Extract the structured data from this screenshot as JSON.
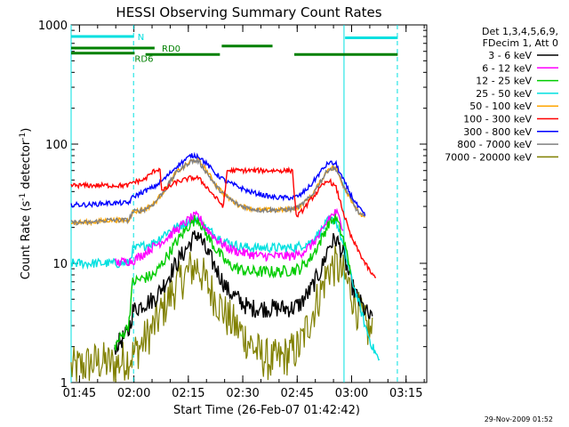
{
  "chart_data": {
    "type": "line",
    "title": "HESSI Observing Summary Count Rates",
    "xlabel": "Start Time (26-Feb-07 01:42:42)",
    "ylabel": "Count Rate (s",
    "ylabel_sup": "-1",
    "ylabel_mid": " detector",
    "ylabel_sup2": "-1",
    "ylabel_end": ")",
    "x_unit": "minutes after 01:42:42",
    "xlim": [
      0,
      98
    ],
    "ylim": [
      1,
      1000
    ],
    "yscale": "log",
    "x_ticks": [
      {
        "label": "01:45",
        "x": 2.3
      },
      {
        "label": "02:00",
        "x": 17.3
      },
      {
        "label": "02:15",
        "x": 32.3
      },
      {
        "label": "02:30",
        "x": 47.3
      },
      {
        "label": "02:45",
        "x": 62.3
      },
      {
        "label": "03:00",
        "x": 77.3
      },
      {
        "label": "03:15",
        "x": 92.3
      }
    ],
    "y_ticks": [
      {
        "label": "1",
        "y": 1
      },
      {
        "label": "10",
        "y": 10
      },
      {
        "label": "100",
        "y": 100
      },
      {
        "label": "1000",
        "y": 1000
      }
    ],
    "legend_header": [
      "Det 1,3,4,5,6,9,",
      "FDecim 1, Att 0"
    ],
    "legend_position": "right",
    "series": [
      {
        "name": "3 - 6 keV",
        "color": "#000000",
        "points": [
          [
            12,
            2
          ],
          [
            15.8,
            2.6
          ],
          [
            17,
            4
          ],
          [
            20,
            4.6
          ],
          [
            23,
            5
          ],
          [
            26,
            7
          ],
          [
            29,
            10
          ],
          [
            33,
            15
          ],
          [
            35,
            18
          ],
          [
            37,
            13
          ],
          [
            40,
            9
          ],
          [
            43,
            6
          ],
          [
            46,
            5
          ],
          [
            49,
            4.2
          ],
          [
            52,
            4.2
          ],
          [
            55,
            4.2
          ],
          [
            58,
            4.2
          ],
          [
            61,
            4.2
          ],
          [
            63,
            4.5
          ],
          [
            66,
            6
          ],
          [
            69,
            9
          ],
          [
            71,
            14
          ],
          [
            73,
            16
          ],
          [
            75,
            12
          ],
          [
            77,
            7
          ],
          [
            79,
            5
          ],
          [
            81,
            4
          ],
          [
            83,
            3.3
          ]
        ]
      },
      {
        "name": "6 - 12 keV",
        "color": "#ff00ff",
        "points": [
          [
            12,
            10
          ],
          [
            15.8,
            10.5
          ],
          [
            17,
            10.5
          ],
          [
            20,
            12
          ],
          [
            23,
            14
          ],
          [
            26,
            16
          ],
          [
            29,
            19
          ],
          [
            33,
            24
          ],
          [
            35,
            25
          ],
          [
            37,
            20
          ],
          [
            40,
            16
          ],
          [
            43,
            13.5
          ],
          [
            46,
            12.5
          ],
          [
            49,
            12
          ],
          [
            52,
            11.5
          ],
          [
            55,
            11.5
          ],
          [
            58,
            11.5
          ],
          [
            61,
            11.5
          ],
          [
            63,
            12
          ],
          [
            66,
            14
          ],
          [
            69,
            18
          ],
          [
            71,
            24
          ],
          [
            73,
            27
          ],
          [
            75,
            20
          ]
        ]
      },
      {
        "name": "12 - 25 keV",
        "color": "#00cc00",
        "points": [
          [
            12,
            2
          ],
          [
            15.8,
            3
          ],
          [
            17,
            7
          ],
          [
            20,
            7.5
          ],
          [
            23,
            8
          ],
          [
            26,
            11
          ],
          [
            29,
            15
          ],
          [
            33,
            22
          ],
          [
            35,
            24
          ],
          [
            37,
            18
          ],
          [
            40,
            13
          ],
          [
            43,
            10
          ],
          [
            46,
            9
          ],
          [
            49,
            8.5
          ],
          [
            52,
            8.5
          ],
          [
            55,
            8.5
          ],
          [
            58,
            8.5
          ],
          [
            61,
            8.8
          ],
          [
            63,
            9
          ],
          [
            66,
            11
          ],
          [
            69,
            16
          ],
          [
            71,
            22
          ],
          [
            73,
            24
          ],
          [
            75,
            16
          ],
          [
            77,
            9
          ]
        ]
      },
      {
        "name": "25 - 50 keV",
        "color": "#00e0e0",
        "points": [
          [
            0,
            10
          ],
          [
            5,
            10
          ],
          [
            10,
            10
          ],
          [
            15.8,
            10
          ],
          [
            17,
            13
          ],
          [
            20,
            14
          ],
          [
            23,
            15
          ],
          [
            26,
            18
          ],
          [
            29,
            20
          ],
          [
            33,
            23
          ],
          [
            35,
            24
          ],
          [
            37,
            20
          ],
          [
            40,
            17
          ],
          [
            43,
            15
          ],
          [
            46,
            14
          ],
          [
            49,
            13.5
          ],
          [
            52,
            13.5
          ],
          [
            55,
            13.5
          ],
          [
            58,
            13.5
          ],
          [
            61,
            13.5
          ],
          [
            63,
            14
          ],
          [
            66,
            15
          ],
          [
            69,
            19
          ],
          [
            71,
            23
          ],
          [
            73,
            23
          ],
          [
            75,
            14
          ],
          [
            77,
            8
          ],
          [
            79,
            5
          ],
          [
            81,
            3
          ],
          [
            83,
            2
          ],
          [
            85,
            1.5
          ]
        ]
      },
      {
        "name": "50 - 100 keV",
        "color": "#ffa500",
        "points": [
          [
            0,
            22
          ],
          [
            5,
            22
          ],
          [
            10,
            23
          ],
          [
            15.8,
            23
          ],
          [
            17,
            27
          ],
          [
            20,
            28
          ],
          [
            23,
            32
          ],
          [
            26,
            42
          ],
          [
            29,
            58
          ],
          [
            33,
            72
          ],
          [
            35,
            74
          ],
          [
            37,
            62
          ],
          [
            40,
            45
          ],
          [
            43,
            36
          ],
          [
            46,
            31
          ],
          [
            49,
            29
          ],
          [
            52,
            28
          ],
          [
            55,
            28
          ],
          [
            58,
            28
          ],
          [
            61,
            28.5
          ],
          [
            63,
            30
          ],
          [
            66,
            36
          ],
          [
            69,
            50
          ],
          [
            71,
            63
          ],
          [
            73,
            63
          ],
          [
            75,
            45
          ],
          [
            77,
            35
          ],
          [
            79,
            27
          ],
          [
            81,
            24
          ]
        ]
      },
      {
        "name": "100 - 300 keV",
        "color": "#ff0000",
        "points": [
          [
            0,
            45
          ],
          [
            5,
            45
          ],
          [
            10,
            45
          ],
          [
            15.8,
            45
          ],
          [
            17,
            48
          ],
          [
            20,
            50
          ],
          [
            23,
            60
          ],
          [
            24.5,
            62
          ],
          [
            25,
            40
          ],
          [
            26,
            42
          ],
          [
            29,
            48
          ],
          [
            33,
            52
          ],
          [
            35,
            52
          ],
          [
            37,
            45
          ],
          [
            40,
            35
          ],
          [
            42,
            30
          ],
          [
            43,
            60
          ],
          [
            46,
            60
          ],
          [
            49,
            60
          ],
          [
            52,
            60
          ],
          [
            55,
            60
          ],
          [
            58,
            60
          ],
          [
            61,
            60
          ],
          [
            62,
            25
          ],
          [
            63,
            26
          ],
          [
            66,
            34
          ],
          [
            69,
            44
          ],
          [
            71,
            50
          ],
          [
            73,
            43
          ],
          [
            75,
            27
          ],
          [
            77,
            17
          ],
          [
            79,
            13
          ],
          [
            81,
            10
          ],
          [
            83,
            8
          ],
          [
            84,
            7.5
          ]
        ]
      },
      {
        "name": "300 - 800 keV",
        "color": "#0000ff",
        "points": [
          [
            0,
            31
          ],
          [
            5,
            31
          ],
          [
            10,
            32
          ],
          [
            15.8,
            32
          ],
          [
            17,
            36
          ],
          [
            20,
            40
          ],
          [
            23,
            44
          ],
          [
            26,
            52
          ],
          [
            29,
            65
          ],
          [
            33,
            80
          ],
          [
            35,
            80
          ],
          [
            37,
            70
          ],
          [
            40,
            56
          ],
          [
            43,
            48
          ],
          [
            46,
            44
          ],
          [
            49,
            40
          ],
          [
            52,
            38
          ],
          [
            55,
            36
          ],
          [
            58,
            35.5
          ],
          [
            61,
            35.5
          ],
          [
            63,
            37
          ],
          [
            66,
            45
          ],
          [
            69,
            60
          ],
          [
            71,
            70
          ],
          [
            73,
            68
          ],
          [
            75,
            50
          ],
          [
            77,
            38
          ],
          [
            79,
            30
          ],
          [
            81,
            25
          ]
        ]
      },
      {
        "name": "800 - 7000 keV",
        "color": "#808080",
        "points": [
          [
            0,
            22
          ],
          [
            5,
            22
          ],
          [
            10,
            23
          ],
          [
            15.8,
            23
          ],
          [
            17,
            27
          ],
          [
            20,
            28
          ],
          [
            23,
            32
          ],
          [
            26,
            42
          ],
          [
            29,
            58
          ],
          [
            33,
            72
          ],
          [
            35,
            72
          ],
          [
            37,
            60
          ],
          [
            40,
            44
          ],
          [
            43,
            36
          ],
          [
            46,
            31
          ],
          [
            49,
            29
          ],
          [
            52,
            28
          ],
          [
            55,
            28
          ],
          [
            58,
            28
          ],
          [
            61,
            28.5
          ],
          [
            63,
            30
          ],
          [
            66,
            36
          ],
          [
            69,
            50
          ],
          [
            71,
            62
          ],
          [
            73,
            62
          ],
          [
            75,
            45
          ],
          [
            77,
            35
          ],
          [
            79,
            27
          ],
          [
            81,
            24
          ]
        ]
      },
      {
        "name": "7000 - 20000 keV",
        "color": "#808000",
        "points": [
          [
            0,
            1.3
          ],
          [
            4,
            1.4
          ],
          [
            8,
            1.5
          ],
          [
            12,
            1.4
          ],
          [
            15.8,
            1.6
          ],
          [
            17,
            1.7
          ],
          [
            20,
            2.2
          ],
          [
            23,
            3
          ],
          [
            26,
            4.5
          ],
          [
            29,
            6.5
          ],
          [
            33,
            9
          ],
          [
            35,
            9.5
          ],
          [
            37,
            7
          ],
          [
            40,
            5
          ],
          [
            43,
            3.5
          ],
          [
            46,
            2.8
          ],
          [
            49,
            2.2
          ],
          [
            52,
            1.7
          ],
          [
            55,
            1.5
          ],
          [
            58,
            1.6
          ],
          [
            61,
            1.8
          ],
          [
            63,
            2
          ],
          [
            66,
            3.5
          ],
          [
            69,
            6
          ],
          [
            71,
            9
          ],
          [
            73,
            9.5
          ],
          [
            75,
            8
          ],
          [
            77,
            6
          ],
          [
            79,
            4
          ],
          [
            81,
            3
          ],
          [
            83,
            2.5
          ]
        ]
      }
    ],
    "flag_bars": [
      {
        "label": "N",
        "color": "#00e0e0",
        "x0": 0,
        "x1": 17.3,
        "y": 800,
        "label_x": 18.3
      },
      {
        "label": "N",
        "color": "#00e0e0",
        "x0": 75.5,
        "x1": 90,
        "y": 780,
        "label_x": null
      },
      {
        "label": "RD0",
        "color": "#008000",
        "x0": 0,
        "x1": 23,
        "y": 640,
        "label_x": 25
      },
      {
        "label": "RD6",
        "color": "#008000",
        "x0": 0,
        "x1": 17.5,
        "y": 580,
        "label_x": 17.5
      },
      {
        "label": "RD6",
        "color": "#008000",
        "x0": 20.5,
        "x1": 41,
        "y": 565,
        "label_x": null
      },
      {
        "label": "RD0",
        "color": "#008000",
        "x0": 41.5,
        "x1": 55.5,
        "y": 665,
        "label_x": null
      },
      {
        "label": "RD6",
        "color": "#008000",
        "x0": 61.5,
        "x1": 90,
        "y": 565,
        "label_x": null
      }
    ],
    "vlines_solid": [
      0,
      75.2
    ],
    "vlines_dashed": [
      17.2,
      89.9
    ],
    "timestamp": "29-Nov-2009 01:52"
  }
}
